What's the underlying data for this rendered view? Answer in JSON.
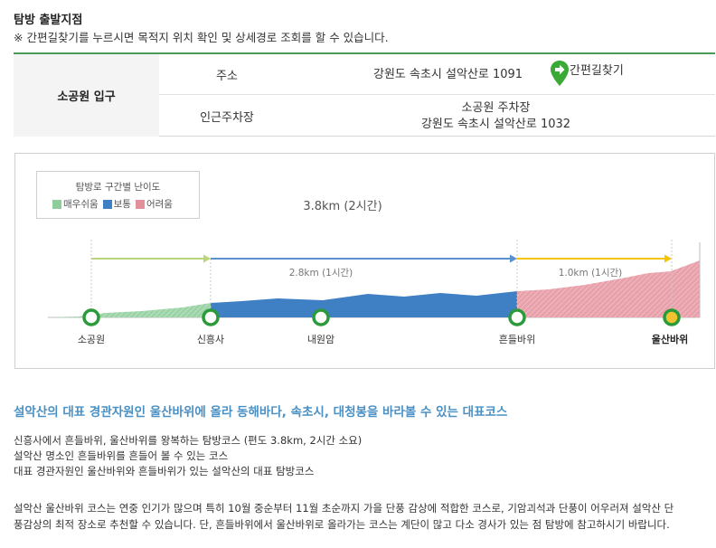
{
  "section": {
    "title": "탐방 출발지점",
    "subtitle": "※ 간편길찾기를 누르시면 목적지 위치 확인 및 상세경로 조회를 할 수 있습니다."
  },
  "info": {
    "start_name": "소공원 입구",
    "address_label": "주소",
    "address_value": "강원도 속초시 설악산로 1091",
    "directions_label": "간편길찾기",
    "parking_label": "인근주차장",
    "parking_name": "소공원 주차장",
    "parking_address": "강원도 속초시 설악산로 1032"
  },
  "legend": {
    "title": "탐방로 구간별 난이도",
    "items": [
      {
        "label": "매우쉬움",
        "color": "#8fcc9c"
      },
      {
        "label": "보통",
        "color": "#3f7fc4"
      },
      {
        "label": "어려움",
        "color": "#e3909b"
      }
    ]
  },
  "course": {
    "total": "3.8km (2시간)",
    "segments": [
      {
        "label": "",
        "color": "#b8d67a",
        "difficulty": "매우쉬움"
      },
      {
        "label": "2.8km (1시간)",
        "color": "#5b8fd0",
        "difficulty": "보통"
      },
      {
        "label": "1.0km (1시간)",
        "color": "#f5c400",
        "difficulty": "어려움"
      }
    ],
    "points": [
      {
        "name": "소공원",
        "highlight": false
      },
      {
        "name": "신흥사",
        "highlight": false
      },
      {
        "name": "내원암",
        "highlight": false
      },
      {
        "name": "흔들바위",
        "highlight": false
      },
      {
        "name": "울산바위",
        "highlight": true
      }
    ]
  },
  "content": {
    "headline": "설악산의 대표 경관자원인 울산바위에 올라 동해바다, 속초시, 대청봉을 바라볼 수 있는 대표코스",
    "bullets": [
      "신흥사에서 흔들바위, 울산바위를 왕복하는 탐방코스 (편도 3.8km, 2시간 소요)",
      "설악산 명소인 흔들바위를 흔들어 볼 수 있는 코스",
      "대표 경관자원인 울산바위와 흔들바위가 있는 설악산의 대표 탐방코스"
    ],
    "description_line1": "설악산 울산바위 코스는 연중 인기가 많으며 특히 10월 중순부터 11월 초순까지 가을 단풍 감상에 적합한 코스로, 기암괴석과 단풍이 어우러져 설악산 단",
    "description_line2": "풍감상의 최적 장소로 추천할 수 있습니다. 단, 흔들바위에서 울산바위로 올라가는 코스는 계단이 많고 다소 경사가 있는 점 탐방에 참고하시기 바랍니다."
  }
}
